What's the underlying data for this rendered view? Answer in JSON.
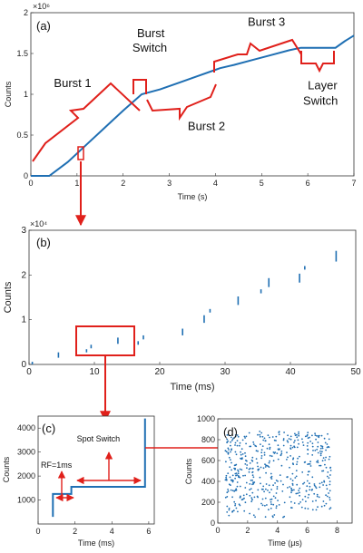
{
  "colors": {
    "data": "#1f6fb3",
    "annotation": "#e0201b",
    "axis": "#333333"
  },
  "chart_data": [
    {
      "id": "a",
      "type": "line",
      "panel_label": "(a)",
      "xlabel": "Time (s)",
      "ylabel": "Counts",
      "y_multiplier": "×10⁶",
      "xlim": [
        0,
        7
      ],
      "ylim": [
        0,
        2000000
      ],
      "xticks": [
        "0",
        "1",
        "2",
        "3",
        "4",
        "5",
        "6",
        "7"
      ],
      "yticks": [
        "0",
        "0.5",
        "1",
        "1.5",
        "2"
      ],
      "series": [
        {
          "x": [
            0,
            0.4,
            0.8,
            1.2,
            1.6,
            2.0,
            2.4,
            2.8,
            3.2,
            3.6,
            4.0,
            4.1,
            4.4,
            4.8,
            5.2,
            5.6,
            5.85,
            6.0,
            6.6,
            6.8,
            7.0
          ],
          "values": [
            0,
            0,
            170000,
            380000,
            590000,
            800000,
            1000000,
            1060000,
            1140000,
            1220000,
            1300000,
            1320000,
            1360000,
            1420000,
            1480000,
            1540000,
            1570000,
            1570000,
            1570000,
            1650000,
            1720000
          ]
        }
      ],
      "annotations": [
        {
          "text": "Burst 1",
          "x": 0.5,
          "y": 1090000
        },
        {
          "text": "Burst",
          "x": 2.3,
          "y": 1700000
        },
        {
          "text": "Switch",
          "x": 2.2,
          "y": 1520000
        },
        {
          "text": "Burst 2",
          "x": 3.4,
          "y": 560000
        },
        {
          "text": "Burst 3",
          "x": 4.7,
          "y": 1840000
        },
        {
          "text": "Layer",
          "x": 6.0,
          "y": 1060000
        },
        {
          "text": "Switch",
          "x": 5.9,
          "y": 870000
        }
      ]
    },
    {
      "id": "b",
      "type": "line",
      "panel_label": "(b)",
      "xlabel": "Time (ms)",
      "ylabel": "Counts",
      "y_multiplier": "×10⁴",
      "xlim": [
        0,
        50
      ],
      "ylim": [
        0,
        30000
      ],
      "xticks": [
        "0",
        "10",
        "20",
        "30",
        "40",
        "50"
      ],
      "yticks": [
        "0",
        "1",
        "2",
        "3"
      ],
      "segments": [
        [
          0.5,
          0,
          600
        ],
        [
          4.5,
          1500,
          2700
        ],
        [
          8.8,
          2700,
          3400
        ],
        [
          9.5,
          3600,
          4400
        ],
        [
          13.6,
          4600,
          6000
        ],
        [
          16.7,
          4400,
          5200
        ],
        [
          17.5,
          5600,
          6500
        ],
        [
          23.5,
          6500,
          8000
        ],
        [
          26.8,
          9300,
          11000
        ],
        [
          27.7,
          11600,
          12400
        ],
        [
          32.0,
          13300,
          15200
        ],
        [
          35.5,
          15900,
          16800
        ],
        [
          36.7,
          17300,
          19300
        ],
        [
          41.4,
          18300,
          20300
        ],
        [
          42.2,
          21200,
          22000
        ],
        [
          47.0,
          23000,
          25400
        ]
      ]
    },
    {
      "id": "c",
      "type": "line",
      "panel_label": "(c)",
      "xlabel": "Time (ms)",
      "ylabel": "Counts",
      "xlim": [
        0,
        6.3
      ],
      "ylim": [
        0,
        4500
      ],
      "xticks": [
        "0",
        "2",
        "4",
        "6"
      ],
      "yticks": [
        "1000",
        "2000",
        "3000",
        "4000"
      ],
      "series": [
        {
          "x": [
            0.8,
            0.8,
            0.8,
            1.8,
            1.8,
            5.8,
            5.8,
            5.8
          ],
          "values": [
            300,
            1250,
            1250,
            1250,
            1550,
            1550,
            1550,
            4400
          ]
        }
      ],
      "annotations": [
        {
          "text": "RF=1ms",
          "x": 0.15,
          "y": 2350
        },
        {
          "text": "Spot Switch",
          "x": 2.1,
          "y": 3450
        }
      ]
    },
    {
      "id": "d",
      "type": "scatter",
      "panel_label": "(d)",
      "xlabel": "Time (μs)",
      "ylabel": "Counts",
      "xlim": [
        0,
        9
      ],
      "ylim": [
        0,
        1000
      ],
      "xticks": [
        "0",
        "2",
        "4",
        "6",
        "8"
      ],
      "yticks": [
        "0",
        "200",
        "400",
        "600",
        "800",
        "1000"
      ],
      "clusters": [
        {
          "x_from": 0.5,
          "x_to": 2.0,
          "y_from": 70,
          "y_to": 850,
          "n": 140
        },
        {
          "x_from": 2.1,
          "x_to": 4.5,
          "y_from": 50,
          "y_to": 880,
          "n": 170
        },
        {
          "x_from": 4.6,
          "x_to": 7.6,
          "y_from": 120,
          "y_to": 880,
          "n": 210
        }
      ]
    }
  ]
}
